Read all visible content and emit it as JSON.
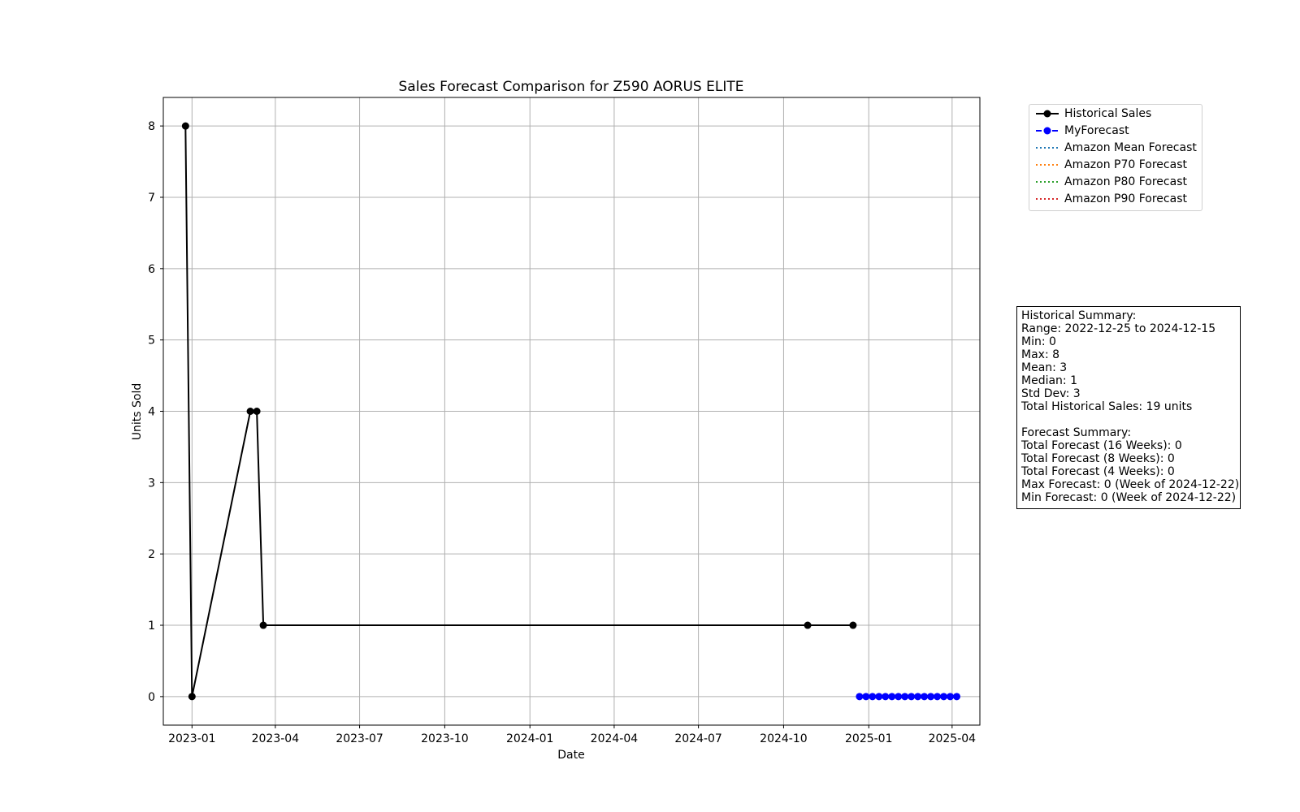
{
  "chart_data": {
    "type": "line",
    "title": "Sales Forecast Comparison for Z590 AORUS ELITE",
    "xlabel": "Date",
    "ylabel": "Units Sold",
    "x_ticks": [
      "2023-01",
      "2023-04",
      "2023-07",
      "2023-10",
      "2024-01",
      "2024-04",
      "2024-07",
      "2024-10",
      "2025-01",
      "2025-04"
    ],
    "y_ticks": [
      "0",
      "1",
      "2",
      "3",
      "4",
      "5",
      "6",
      "7",
      "8"
    ],
    "xlim": [
      "2022-12-01",
      "2025-05-01"
    ],
    "ylim": [
      -0.4,
      8.4
    ],
    "grid": true,
    "legend_position": "outside-upper-right",
    "series": [
      {
        "name": "Historical Sales",
        "color": "#000000",
        "style": "solid-marker",
        "points": [
          {
            "x": "2022-12-25",
            "y": 8
          },
          {
            "x": "2023-01-01",
            "y": 0
          },
          {
            "x": "2023-03-05",
            "y": 4
          },
          {
            "x": "2023-03-12",
            "y": 4
          },
          {
            "x": "2023-03-19",
            "y": 1
          },
          {
            "x": "2024-10-27",
            "y": 1
          },
          {
            "x": "2024-12-15",
            "y": 1
          }
        ]
      },
      {
        "name": "MyForecast",
        "color": "#0000ff",
        "style": "dashed-marker",
        "points": [
          {
            "x": "2024-12-22",
            "y": 0
          },
          {
            "x": "2024-12-29",
            "y": 0
          },
          {
            "x": "2025-01-05",
            "y": 0
          },
          {
            "x": "2025-01-12",
            "y": 0
          },
          {
            "x": "2025-01-19",
            "y": 0
          },
          {
            "x": "2025-01-26",
            "y": 0
          },
          {
            "x": "2025-02-02",
            "y": 0
          },
          {
            "x": "2025-02-09",
            "y": 0
          },
          {
            "x": "2025-02-16",
            "y": 0
          },
          {
            "x": "2025-02-23",
            "y": 0
          },
          {
            "x": "2025-03-02",
            "y": 0
          },
          {
            "x": "2025-03-09",
            "y": 0
          },
          {
            "x": "2025-03-16",
            "y": 0
          },
          {
            "x": "2025-03-23",
            "y": 0
          },
          {
            "x": "2025-03-30",
            "y": 0
          },
          {
            "x": "2025-04-06",
            "y": 0
          }
        ]
      },
      {
        "name": "Amazon Mean Forecast",
        "color": "#1f77b4",
        "style": "dotted",
        "points": []
      },
      {
        "name": "Amazon P70 Forecast",
        "color": "#ff7f0e",
        "style": "dotted",
        "points": []
      },
      {
        "name": "Amazon P80 Forecast",
        "color": "#2ca02c",
        "style": "dotted",
        "points": []
      },
      {
        "name": "Amazon P90 Forecast",
        "color": "#d62728",
        "style": "dotted",
        "points": []
      }
    ]
  },
  "summary": {
    "lines": [
      "Historical Summary:",
      "Range: 2022-12-25 to 2024-12-15",
      "Min: 0",
      "Max: 8",
      "Mean: 3",
      "Median: 1",
      "Std Dev: 3",
      "Total Historical Sales: 19 units",
      "",
      "Forecast Summary:",
      "Total Forecast (16 Weeks): 0",
      "Total Forecast (8 Weeks): 0",
      "Total Forecast (4 Weeks): 0",
      "Max Forecast: 0 (Week of 2024-12-22)",
      "Min Forecast: 0 (Week of 2024-12-22)"
    ]
  }
}
